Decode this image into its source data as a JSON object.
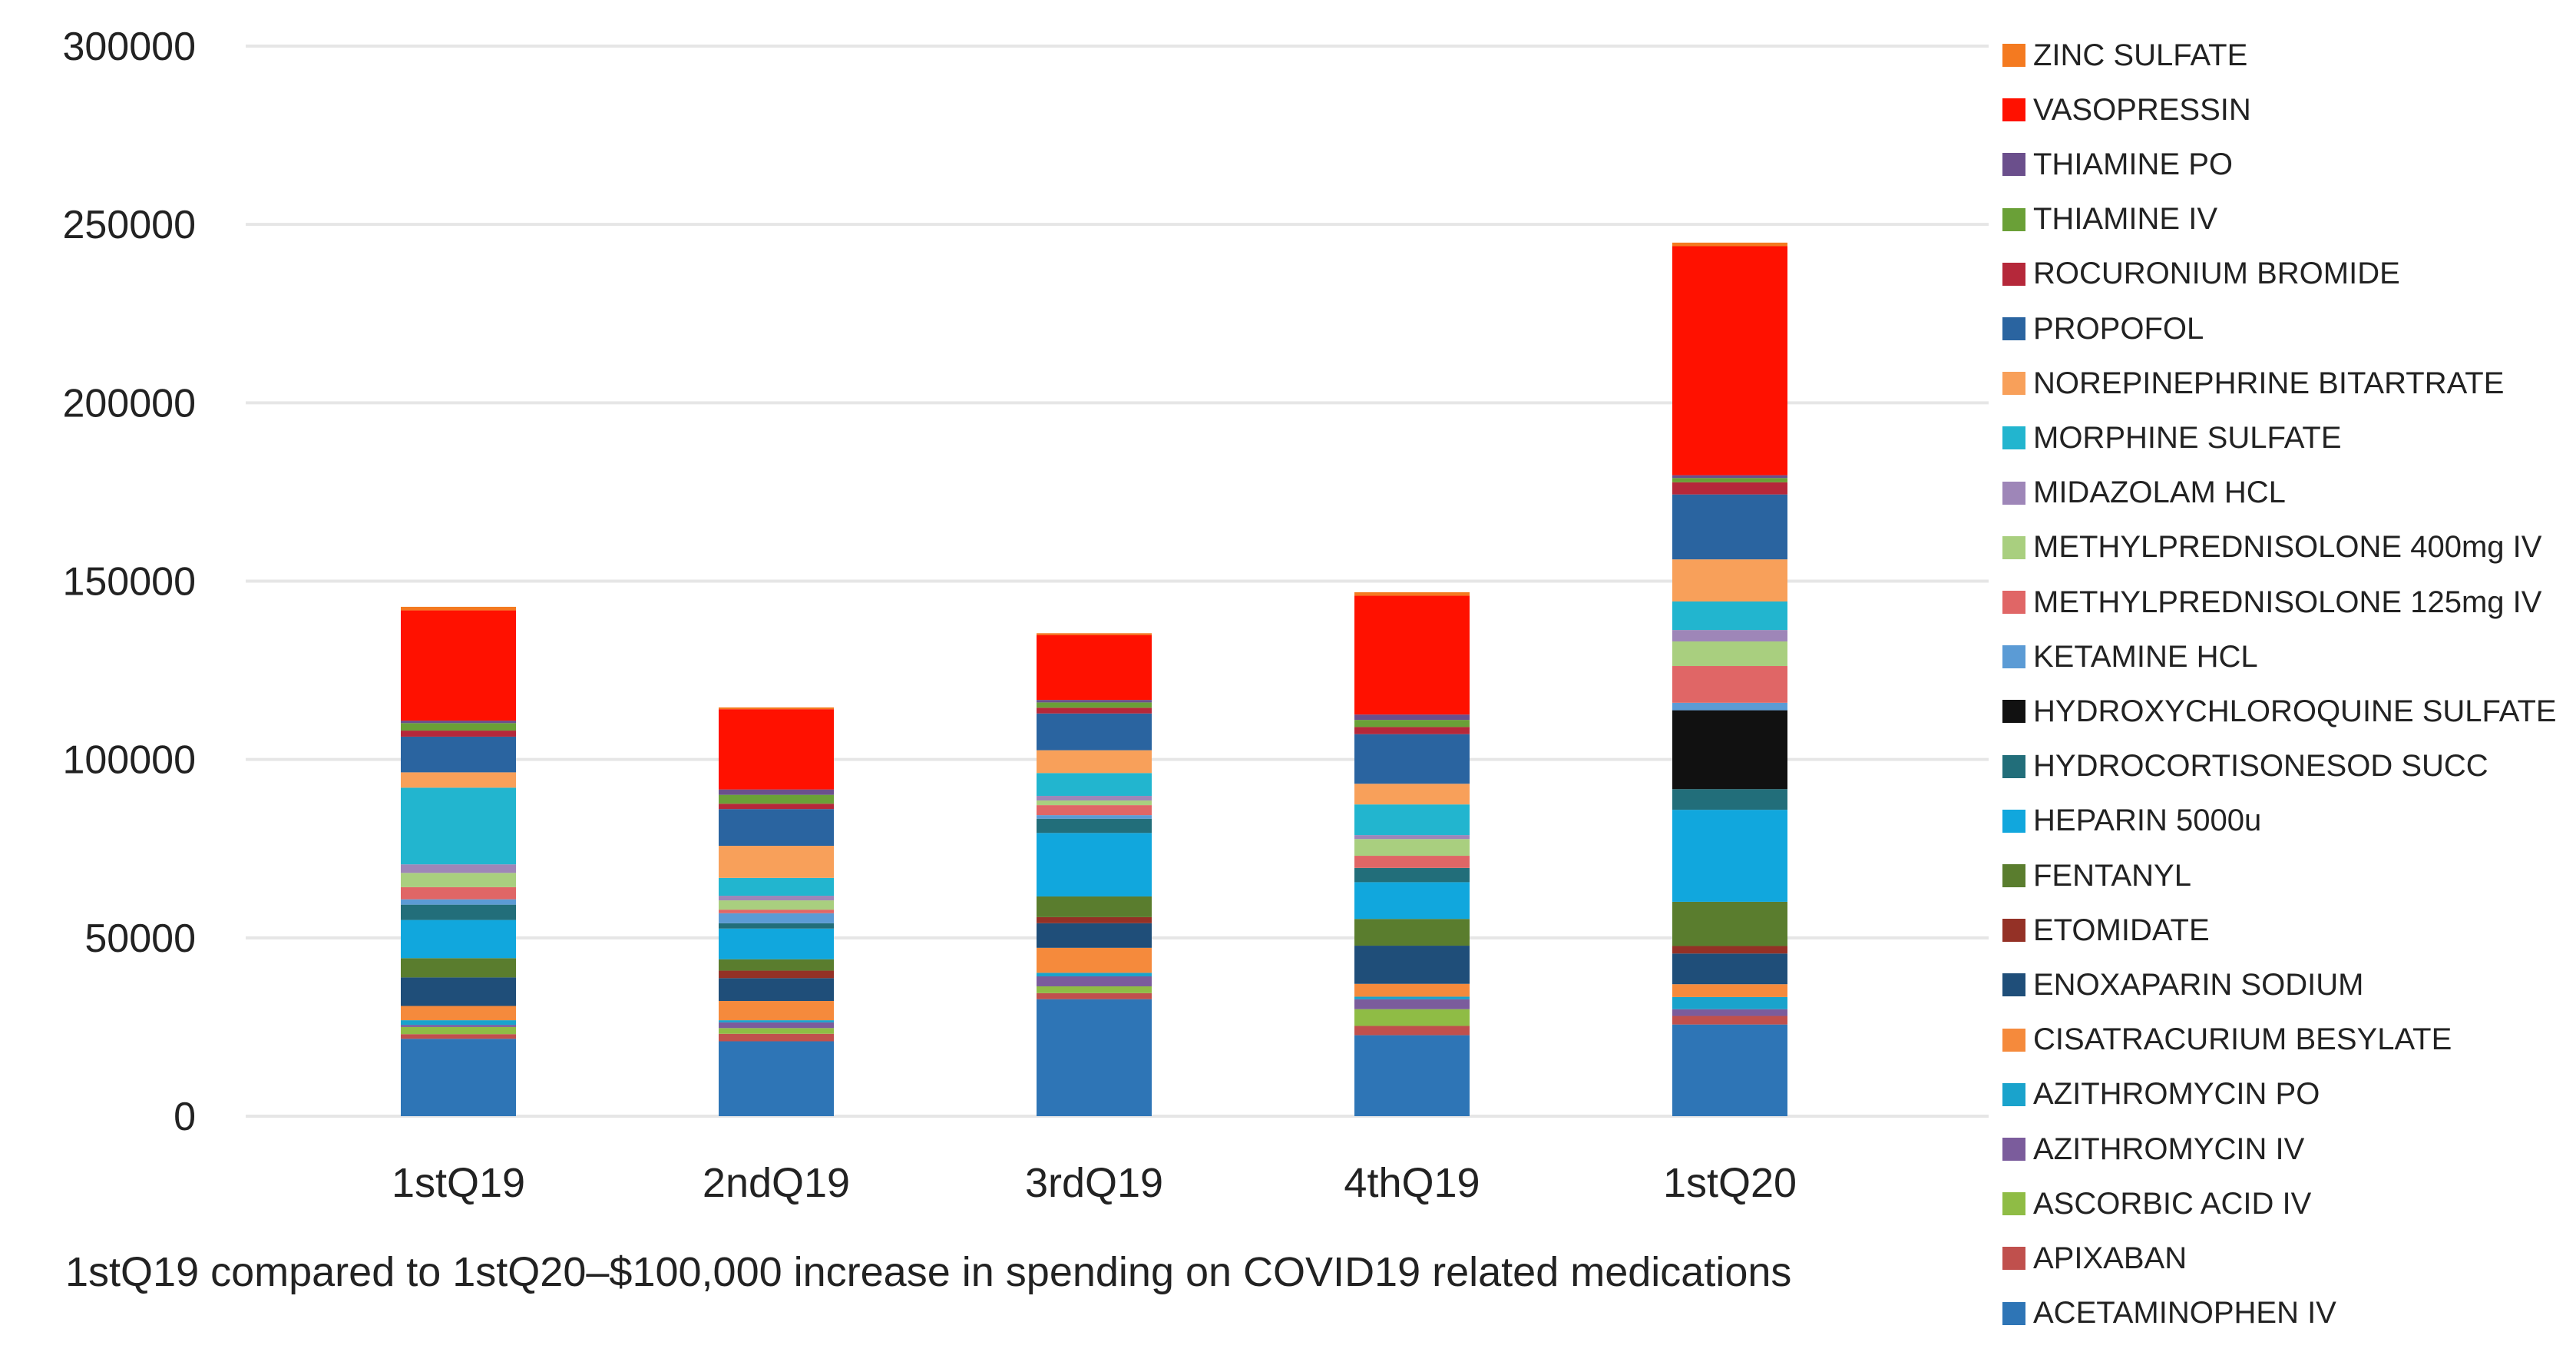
{
  "chart_data": {
    "type": "bar",
    "stacked": true,
    "title": "",
    "caption": "1stQ19 compared to 1stQ20–$100,000 increase in spending on COVID19 related medications",
    "xlabel": "",
    "ylabel": "",
    "ylim": [
      0,
      300000
    ],
    "yticks": [
      0,
      50000,
      100000,
      150000,
      200000,
      250000,
      300000
    ],
    "ytick_labels": [
      "0",
      "50000",
      "100000",
      "150000",
      "200000",
      "250000",
      "300000"
    ],
    "grid": true,
    "legend_position": "right",
    "categories": [
      "1stQ19",
      "2ndQ19",
      "3rdQ19",
      "4thQ19",
      "1stQ20"
    ],
    "series": [
      {
        "name": "ACETAMINOPHEN IV",
        "color": "#2e75b6",
        "values": [
          21700,
          21000,
          32800,
          22700,
          25700
        ]
      },
      {
        "name": "APIXABAN",
        "color": "#c0504d",
        "values": [
          1300,
          2100,
          1700,
          2600,
          2400
        ]
      },
      {
        "name": "ASCORBIC ACID IV",
        "color": "#8fbc45",
        "values": [
          2000,
          1600,
          1900,
          4700,
          0
        ]
      },
      {
        "name": "AZITHROMYCIN IV",
        "color": "#7b5c9c",
        "values": [
          600,
          1600,
          2800,
          2800,
          1900
        ]
      },
      {
        "name": "AZITHROMYCIN PO",
        "color": "#1aa3cc",
        "values": [
          1300,
          600,
          1000,
          700,
          3400
        ]
      },
      {
        "name": "CISATRACURIUM BESYLATE",
        "color": "#f58a3c",
        "values": [
          4000,
          5400,
          7000,
          3600,
          3600
        ]
      },
      {
        "name": "ENOXAPARIN SODIUM",
        "color": "#1f4e79",
        "values": [
          8000,
          6400,
          6900,
          10700,
          8600
        ]
      },
      {
        "name": "ETOMIDATE",
        "color": "#943126",
        "values": [
          0,
          2100,
          1700,
          0,
          2100
        ]
      },
      {
        "name": "FENTANYL",
        "color": "#5a7d2e",
        "values": [
          5400,
          3200,
          5800,
          7500,
          12400
        ]
      },
      {
        "name": "HEPARIN 5000u",
        "color": "#11a7dd",
        "values": [
          10700,
          8600,
          17800,
          10300,
          25800
        ]
      },
      {
        "name": "HYDROCORTISONESOD SUCC",
        "color": "#226e7a",
        "values": [
          4300,
          1500,
          4000,
          4000,
          5800
        ]
      },
      {
        "name": "HYDROXYCHLOROQUINE SULFATE",
        "color": "#111111",
        "values": [
          0,
          0,
          0,
          0,
          22100
        ]
      },
      {
        "name": "KETAMINE HCL",
        "color": "#5b9bd5",
        "values": [
          1500,
          2800,
          1000,
          0,
          2100
        ]
      },
      {
        "name": "METHYLPREDNISOLONE 125mg IV",
        "color": "#e06666",
        "values": [
          3400,
          1000,
          2800,
          3400,
          10300
        ]
      },
      {
        "name": "METHYLPREDNISOLONE 400mg IV",
        "color": "#a9cf7f",
        "values": [
          4000,
          2600,
          1300,
          4700,
          6900
        ]
      },
      {
        "name": "MIDAZOLAM HCL",
        "color": "#9e86b8",
        "values": [
          2400,
          1300,
          1300,
          1100,
          3200
        ]
      },
      {
        "name": "MORPHINE SULFATE",
        "color": "#22b5cf",
        "values": [
          21500,
          5000,
          6400,
          8600,
          8000
        ]
      },
      {
        "name": "NOREPINEPHRINE BITARTRATE",
        "color": "#f8a05a",
        "values": [
          4300,
          9000,
          6400,
          5800,
          11800
        ]
      },
      {
        "name": "PROPOFOL",
        "color": "#2a64a0",
        "values": [
          10000,
          10300,
          10300,
          13900,
          18200
        ]
      },
      {
        "name": "ROCURONIUM BROMIDE",
        "color": "#b5283a",
        "values": [
          1700,
          1500,
          1600,
          2000,
          3400
        ]
      },
      {
        "name": "THIAMINE IV",
        "color": "#6aa037",
        "values": [
          2100,
          2500,
          1500,
          2000,
          1200
        ]
      },
      {
        "name": "THIAMINE PO",
        "color": "#6b4f8c",
        "values": [
          700,
          1500,
          700,
          1500,
          800
        ]
      },
      {
        "name": "VASOPRESSIN",
        "color": "#ff1100",
        "values": [
          30900,
          22500,
          18200,
          33300,
          64200
        ]
      },
      {
        "name": "ZINC SULFATE",
        "color": "#f47a20",
        "values": [
          1000,
          500,
          500,
          1000,
          1000
        ]
      }
    ]
  }
}
